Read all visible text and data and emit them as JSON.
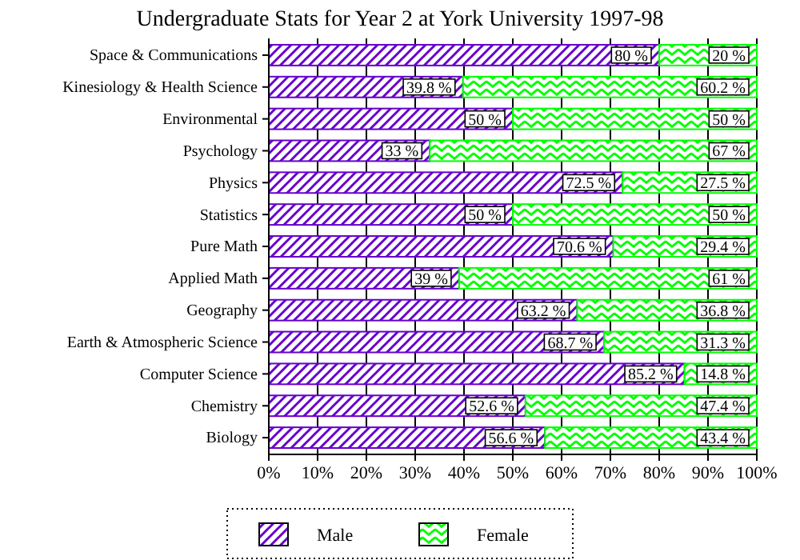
{
  "chart_data": {
    "type": "bar",
    "orientation": "horizontal",
    "stacked": true,
    "title": "Undergraduate Stats for Year 2 at York University 1997-98",
    "categories": [
      "Space & Communications",
      "Kinesiology & Health Science",
      "Environmental",
      "Psychology",
      "Physics",
      "Statistics",
      "Pure Math",
      "Applied Math",
      "Geography",
      "Earth & Atmospheric Science",
      "Computer Science",
      "Chemistry",
      "Biology"
    ],
    "series": [
      {
        "name": "Male",
        "color": "#6600cc",
        "values": [
          80,
          39.8,
          50,
          33,
          72.5,
          50,
          70.6,
          39,
          63.2,
          68.7,
          85.2,
          52.6,
          56.6
        ],
        "value_labels": [
          "80 %",
          "39.8 %",
          "50 %",
          "33 %",
          "72.5 %",
          "50 %",
          "70.6 %",
          "39 %",
          "63.2 %",
          "68.7 %",
          "85.2 %",
          "52.6 %",
          "56.6 %"
        ]
      },
      {
        "name": "Female",
        "color": "#00ff00",
        "values": [
          20,
          60.2,
          50,
          67,
          27.5,
          50,
          29.4,
          61,
          36.8,
          31.3,
          14.8,
          47.4,
          43.4
        ],
        "value_labels": [
          "20 %",
          "60.2 %",
          "50 %",
          "67 %",
          "27.5 %",
          "50 %",
          "29.4 %",
          "61 %",
          "36.8 %",
          "31.3 %",
          "14.8 %",
          "47.4 %",
          "43.4 %"
        ]
      }
    ],
    "xlim": [
      0,
      100
    ],
    "xticks": [
      {
        "value": 0,
        "label": "0%"
      },
      {
        "value": 10,
        "label": "10%"
      },
      {
        "value": 20,
        "label": "20%"
      },
      {
        "value": 30,
        "label": "30%"
      },
      {
        "value": 40,
        "label": "40%"
      },
      {
        "value": 50,
        "label": "50%"
      },
      {
        "value": 60,
        "label": "60%"
      },
      {
        "value": 70,
        "label": "70%"
      },
      {
        "value": 80,
        "label": "80%"
      },
      {
        "value": 90,
        "label": "90%"
      },
      {
        "value": 100,
        "label": "100%"
      }
    ],
    "grid": "x",
    "legend": "bottom"
  }
}
